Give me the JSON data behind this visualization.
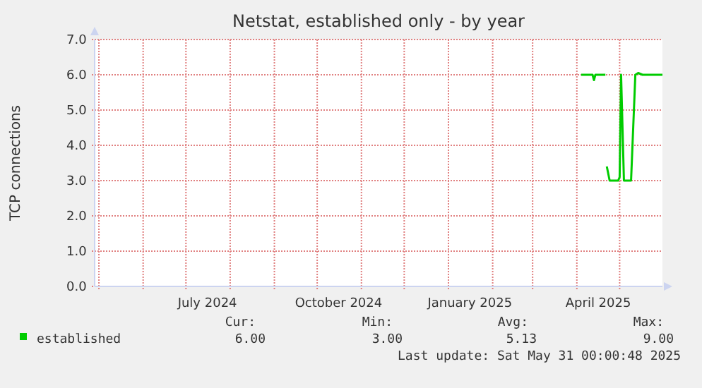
{
  "chart_data": {
    "type": "line",
    "title": "Netstat, established only - by year",
    "ylabel": "TCP connections",
    "x": [
      "2025-04-04",
      "2025-04-07",
      "2025-04-10",
      "2025-04-12",
      "2025-04-13",
      "2025-04-14",
      "2025-04-16",
      "2025-04-19",
      "2025-04-21",
      "2025-04-21T12:00",
      "2025-04-22",
      "2025-04-24",
      "2025-04-30",
      "2025-05-01",
      "2025-05-02",
      "2025-05-04",
      "2025-05-09",
      "2025-05-12",
      "2025-05-14",
      "2025-05-17",
      "2025-05-31"
    ],
    "series": [
      {
        "name": "established",
        "color": "#00cc00",
        "values": [
          6.0,
          6.0,
          6.0,
          6.0,
          5.85,
          6.0,
          6.0,
          6.0,
          6.0,
          null,
          3.4,
          3.0,
          3.0,
          3.1,
          6.0,
          3.0,
          3.0,
          6.0,
          6.05,
          6.0,
          6.0
        ]
      }
    ],
    "xlim": [
      "2024-04-28",
      "2025-05-31"
    ],
    "xticks": [
      {
        "value": "2024-05-01",
        "label": null
      },
      {
        "value": "2024-06-01",
        "label": null
      },
      {
        "value": "2024-07-01",
        "label": null
      },
      {
        "value": "2024-07-16",
        "label": "July 2024"
      },
      {
        "value": "2024-08-01",
        "label": null
      },
      {
        "value": "2024-09-01",
        "label": null
      },
      {
        "value": "2024-10-01",
        "label": null
      },
      {
        "value": "2024-10-16",
        "label": "October 2024"
      },
      {
        "value": "2024-11-01",
        "label": null
      },
      {
        "value": "2024-12-01",
        "label": null
      },
      {
        "value": "2025-01-01",
        "label": null
      },
      {
        "value": "2025-01-16",
        "label": "January 2025"
      },
      {
        "value": "2025-02-01",
        "label": null
      },
      {
        "value": "2025-03-01",
        "label": null
      },
      {
        "value": "2025-04-01",
        "label": null
      },
      {
        "value": "2025-04-16",
        "label": "April 2025"
      },
      {
        "value": "2025-05-01",
        "label": null
      }
    ],
    "ylim": [
      0,
      7
    ],
    "yticks": [
      {
        "value": 0,
        "label": "0.0"
      },
      {
        "value": 1,
        "label": "1.0"
      },
      {
        "value": 2,
        "label": "2.0"
      },
      {
        "value": 3,
        "label": "3.0"
      },
      {
        "value": 4,
        "label": "4.0"
      },
      {
        "value": 5,
        "label": "5.0"
      },
      {
        "value": 6,
        "label": "6.0"
      },
      {
        "value": 7,
        "label": "7.0"
      }
    ],
    "grid": true,
    "legend": "bottom left",
    "marker": "none",
    "line_style": "solid",
    "annotations": [
      "Cur:",
      "Min:",
      "Avg:",
      "Max:",
      "6.00",
      "3.00",
      "5.13",
      "9.00",
      "Last update: Sat May 31 00:00:48 2025"
    ]
  }
}
